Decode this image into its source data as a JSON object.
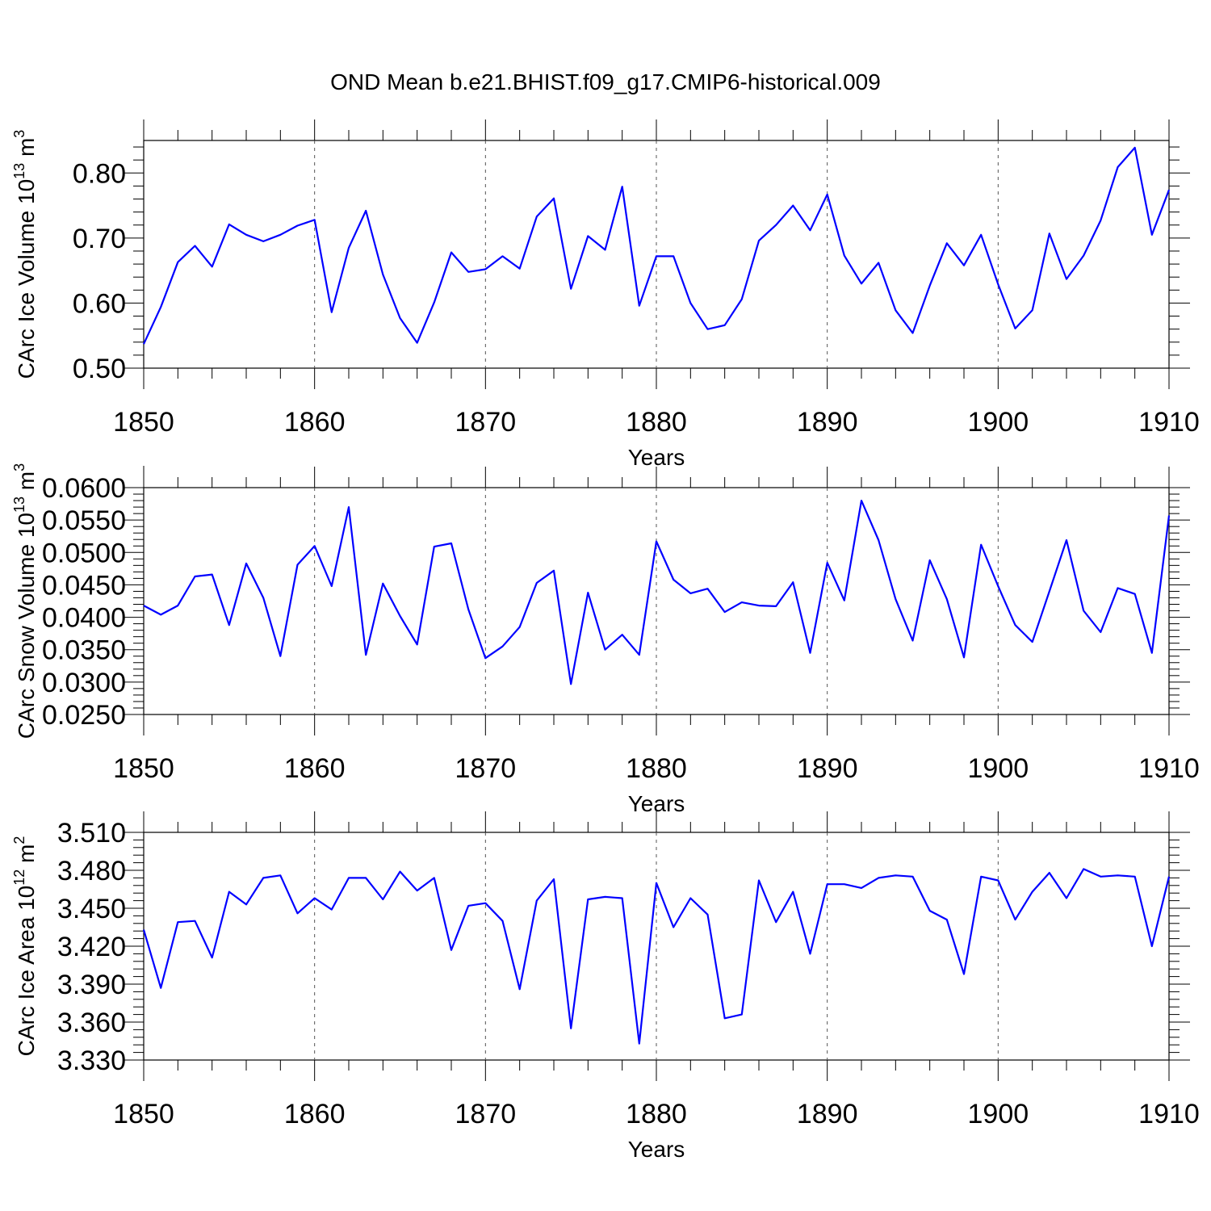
{
  "figure_title": "OND Mean b.e21.BHIST.f09_g17.CMIP6-historical.009",
  "colors": {
    "line": "#0000ff",
    "axes": "#000000",
    "grid": "#555555"
  },
  "chart_data": [
    {
      "type": "line",
      "ylabel": "CArc Ice Volume 10",
      "ylabel_exp": "13",
      "ylabel_unit": " m",
      "ylabel_unit_exp": "3",
      "xlabel": "Years",
      "xlim": [
        1850,
        1910
      ],
      "ylim": [
        0.5,
        0.85
      ],
      "xticks": [
        "1850",
        "1860",
        "1870",
        "1880",
        "1890",
        "1900",
        "1910"
      ],
      "yticks": [
        "0.50",
        "0.60",
        "0.70",
        "0.80"
      ],
      "grid": "vertical dashed at decades",
      "x_start": 1850,
      "values": [
        0.537,
        0.594,
        0.663,
        0.688,
        0.656,
        0.721,
        0.705,
        0.695,
        0.705,
        0.719,
        0.728,
        0.586,
        0.685,
        0.742,
        0.644,
        0.577,
        0.539,
        0.601,
        0.678,
        0.648,
        0.652,
        0.672,
        0.653,
        0.733,
        0.761,
        0.622,
        0.703,
        0.682,
        0.779,
        0.596,
        0.672,
        0.672,
        0.6,
        0.56,
        0.566,
        0.606,
        0.696,
        0.72,
        0.75,
        0.712,
        0.767,
        0.673,
        0.63,
        0.662,
        0.589,
        0.554,
        0.627,
        0.692,
        0.658,
        0.705,
        0.629,
        0.561,
        0.589,
        0.707,
        0.637,
        0.673,
        0.727,
        0.809,
        0.839,
        0.705,
        0.774
      ]
    },
    {
      "type": "line",
      "ylabel": "CArc Snow Volume 10",
      "ylabel_exp": "13",
      "ylabel_unit": " m",
      "ylabel_unit_exp": "3",
      "xlabel": "Years",
      "xlim": [
        1850,
        1910
      ],
      "ylim": [
        0.025,
        0.06
      ],
      "xticks": [
        "1850",
        "1860",
        "1870",
        "1880",
        "1890",
        "1900",
        "1910"
      ],
      "yticks": [
        "0.0250",
        "0.0300",
        "0.0350",
        "0.0400",
        "0.0450",
        "0.0500",
        "0.0550",
        "0.0600"
      ],
      "grid": "vertical dashed at decades",
      "x_start": 1850,
      "values": [
        0.0418,
        0.0404,
        0.0418,
        0.0463,
        0.0466,
        0.0388,
        0.0483,
        0.043,
        0.034,
        0.0481,
        0.051,
        0.0448,
        0.057,
        0.0342,
        0.0452,
        0.0402,
        0.0358,
        0.0509,
        0.0514,
        0.0412,
        0.0337,
        0.0355,
        0.0385,
        0.0453,
        0.0472,
        0.0297,
        0.0438,
        0.035,
        0.0373,
        0.0342,
        0.0517,
        0.0458,
        0.0437,
        0.0444,
        0.0408,
        0.0423,
        0.0418,
        0.0417,
        0.0454,
        0.0345,
        0.0484,
        0.0426,
        0.058,
        0.0519,
        0.0428,
        0.0364,
        0.0488,
        0.0428,
        0.0338,
        0.0512,
        0.0448,
        0.0388,
        0.0362,
        0.044,
        0.0519,
        0.041,
        0.0377,
        0.0445,
        0.0436,
        0.0345,
        0.0557
      ]
    },
    {
      "type": "line",
      "ylabel": "CArc Ice Area 10",
      "ylabel_exp": "12",
      "ylabel_unit": " m",
      "ylabel_unit_exp": "2",
      "xlabel": "Years",
      "xlim": [
        1850,
        1910
      ],
      "ylim": [
        3.33,
        3.51
      ],
      "xticks": [
        "1850",
        "1860",
        "1870",
        "1880",
        "1890",
        "1900",
        "1910"
      ],
      "yticks": [
        "3.330",
        "3.360",
        "3.390",
        "3.420",
        "3.450",
        "3.480",
        "3.510"
      ],
      "grid": "vertical dashed at decades",
      "x_start": 1850,
      "values": [
        3.433,
        3.387,
        3.439,
        3.44,
        3.411,
        3.463,
        3.453,
        3.474,
        3.476,
        3.446,
        3.458,
        3.449,
        3.474,
        3.474,
        3.457,
        3.479,
        3.464,
        3.474,
        3.417,
        3.452,
        3.454,
        3.44,
        3.386,
        3.456,
        3.473,
        3.355,
        3.457,
        3.459,
        3.458,
        3.343,
        3.47,
        3.435,
        3.458,
        3.445,
        3.363,
        3.366,
        3.472,
        3.439,
        3.463,
        3.414,
        3.469,
        3.469,
        3.466,
        3.474,
        3.476,
        3.475,
        3.448,
        3.441,
        3.398,
        3.475,
        3.472,
        3.441,
        3.463,
        3.478,
        3.458,
        3.481,
        3.475,
        3.476,
        3.475,
        3.42,
        3.475
      ]
    }
  ]
}
